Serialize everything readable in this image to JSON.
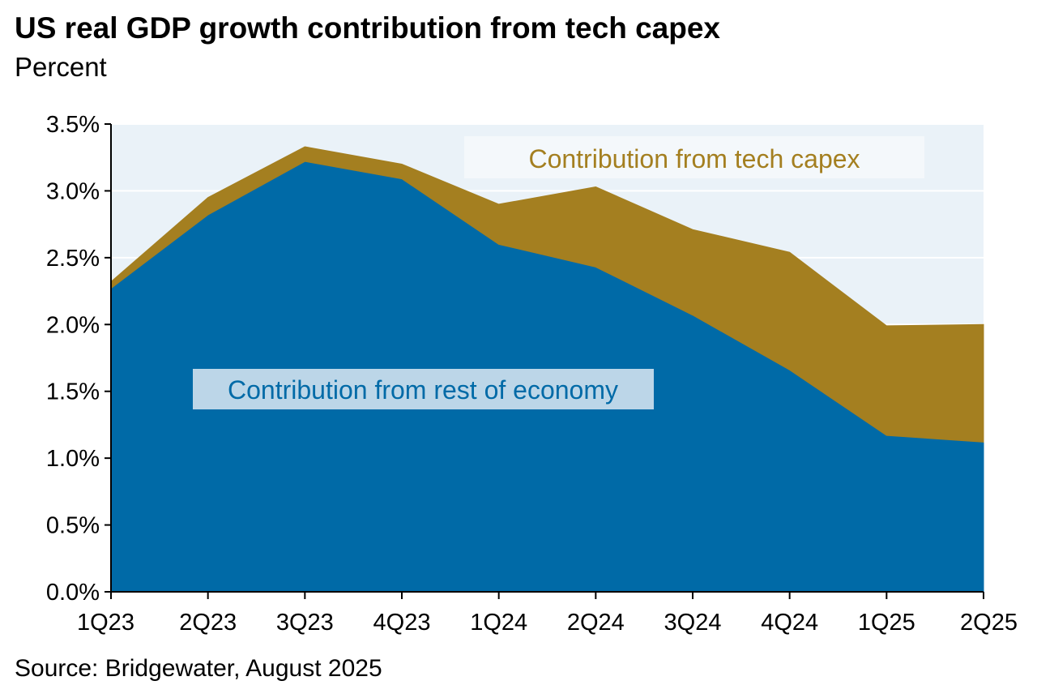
{
  "chart_data": {
    "type": "area",
    "stacked": true,
    "title": "US real GDP growth contribution from tech capex",
    "subtitle": "Percent",
    "source": "Source: Bridgewater, August 2025",
    "categories": [
      "1Q23",
      "2Q23",
      "3Q23",
      "4Q23",
      "1Q24",
      "2Q24",
      "3Q24",
      "4Q24",
      "1Q25",
      "2Q25"
    ],
    "y_ticks": [
      "0.0%",
      "0.5%",
      "1.0%",
      "1.5%",
      "2.0%",
      "2.5%",
      "3.0%",
      "3.5%"
    ],
    "ylim": [
      0,
      3.5
    ],
    "grid": true,
    "series": [
      {
        "name": "Contribution from rest of economy",
        "values": [
          2.27,
          2.82,
          3.22,
          3.09,
          2.6,
          2.43,
          2.07,
          1.66,
          1.17,
          1.12
        ],
        "color": "#006aa7"
      },
      {
        "name": "Contribution from tech capex",
        "values": [
          0.05,
          0.13,
          0.11,
          0.11,
          0.3,
          0.6,
          0.64,
          0.88,
          0.82,
          0.88
        ],
        "color": "#a47f20"
      }
    ]
  }
}
